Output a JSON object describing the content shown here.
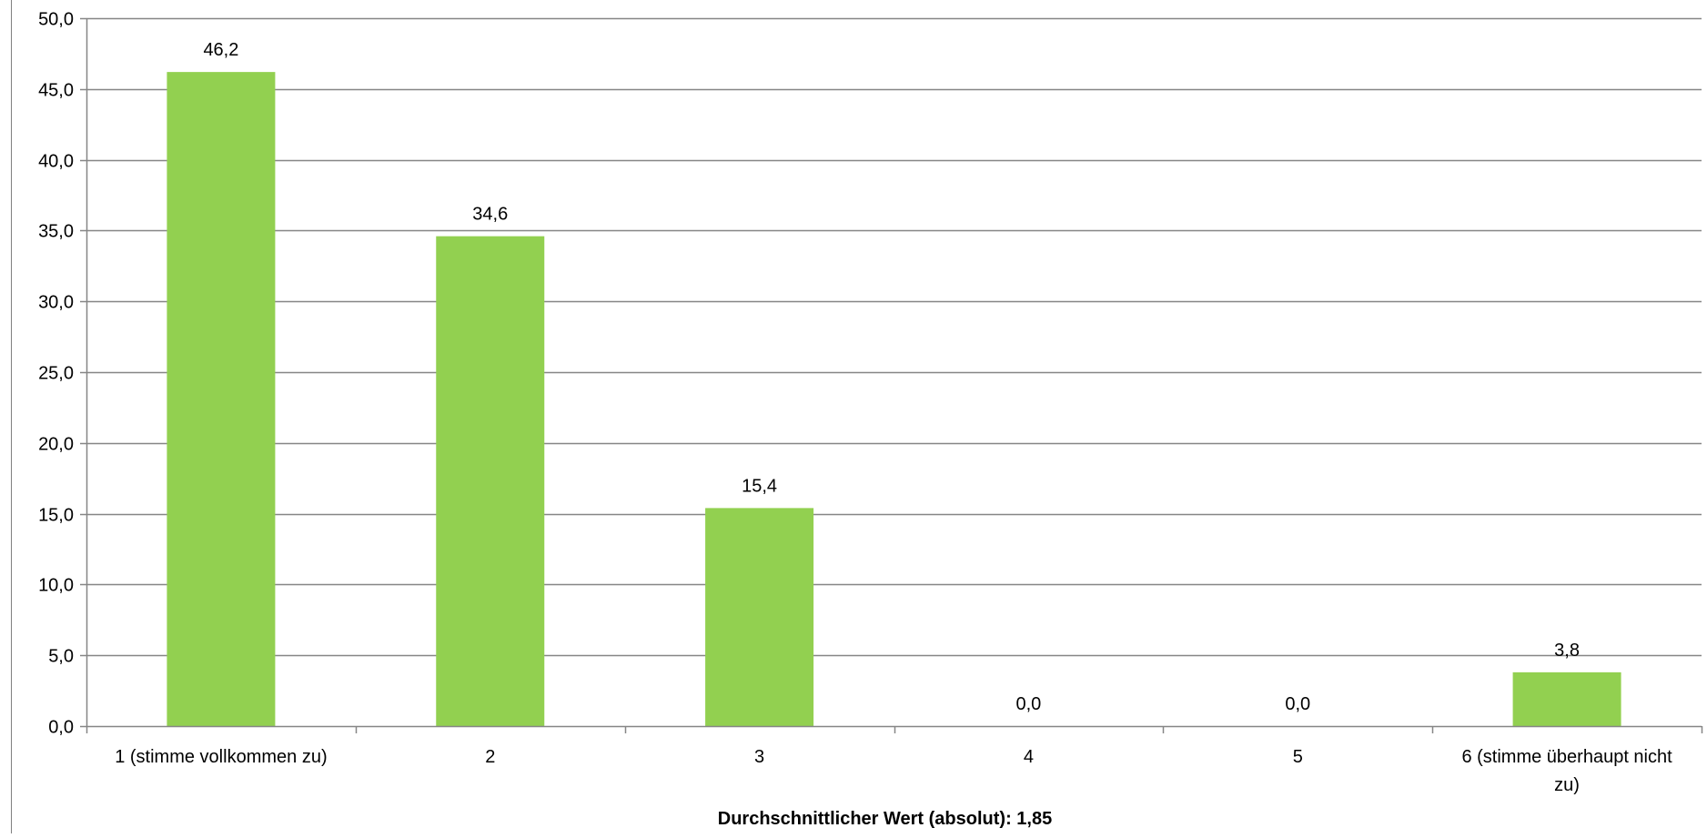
{
  "chart_data": {
    "type": "bar",
    "categories": [
      "1 (stimme vollkommen zu)",
      "2",
      "3",
      "4",
      "5",
      "6 (stimme überhaupt nicht zu)"
    ],
    "category_lines": [
      [
        "1 (stimme vollkommen zu)"
      ],
      [
        "2"
      ],
      [
        "3"
      ],
      [
        "4"
      ],
      [
        "5"
      ],
      [
        "6 (stimme überhaupt nicht",
        "zu)"
      ]
    ],
    "values": [
      46.2,
      34.6,
      15.4,
      0.0,
      0.0,
      3.8
    ],
    "data_labels": [
      "46,2",
      "34,6",
      "15,4",
      "0,0",
      "0,0",
      "3,8"
    ],
    "ylim": [
      0,
      50
    ],
    "yticks": [
      0,
      5,
      10,
      15,
      20,
      25,
      30,
      35,
      40,
      45,
      50
    ],
    "ytick_labels": [
      "0,0",
      "5,0",
      "10,0",
      "15,0",
      "20,0",
      "25,0",
      "30,0",
      "35,0",
      "40,0",
      "45,0",
      "50,0"
    ],
    "xlabel": "Durchschnittlicher Wert (absolut): 1,85",
    "ylabel": "",
    "title": "",
    "grid": true,
    "bar_color": "#92d050",
    "gridline_color": "#868686",
    "axis_color": "#868686"
  }
}
